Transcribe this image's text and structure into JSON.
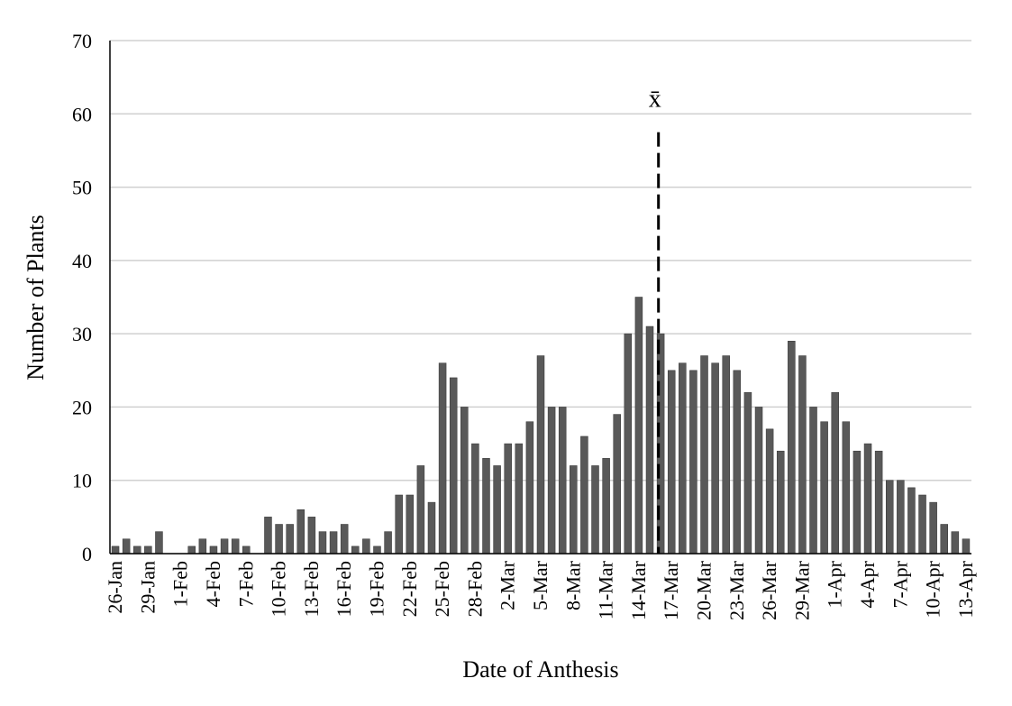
{
  "chart_data": {
    "type": "bar",
    "xlabel": "Date of Anthesis",
    "ylabel": "Number of Plants",
    "categories": [
      "26-Jan",
      null,
      null,
      "29-Jan",
      null,
      null,
      "1-Feb",
      null,
      null,
      "4-Feb",
      null,
      null,
      "7-Feb",
      null,
      null,
      "10-Feb",
      null,
      null,
      "13-Feb",
      null,
      null,
      "16-Feb",
      null,
      null,
      "19-Feb",
      null,
      null,
      "22-Feb",
      null,
      null,
      "25-Feb",
      null,
      null,
      "28-Feb",
      null,
      null,
      "2-Mar",
      null,
      null,
      "5-Mar",
      null,
      null,
      "8-Mar",
      null,
      null,
      "11-Mar",
      null,
      null,
      "14-Mar",
      null,
      null,
      "17-Mar",
      null,
      null,
      "20-Mar",
      null,
      null,
      "23-Mar",
      null,
      null,
      "26-Mar",
      null,
      null,
      "29-Mar",
      null,
      null,
      "1-Apr",
      null,
      null,
      "4-Apr",
      null,
      null,
      "7-Apr",
      null,
      null,
      "10-Apr",
      null,
      null,
      "13-Apr"
    ],
    "values": [
      1,
      2,
      1,
      1,
      3,
      0,
      0,
      1,
      2,
      1,
      2,
      2,
      1,
      0,
      5,
      4,
      4,
      6,
      5,
      3,
      3,
      4,
      1,
      2,
      1,
      3,
      8,
      8,
      12,
      7,
      26,
      24,
      20,
      15,
      13,
      12,
      15,
      15,
      18,
      27,
      20,
      20,
      12,
      16,
      12,
      13,
      19,
      30,
      35,
      31,
      30,
      25,
      26,
      25,
      27,
      26,
      27,
      25,
      22,
      20,
      17,
      14,
      29,
      27,
      20,
      18,
      22,
      18,
      14,
      15,
      14,
      10,
      10,
      9,
      8,
      7,
      4,
      3,
      2
    ],
    "color": "#595959",
    "ylim": [
      0,
      70
    ],
    "yticks": [
      0,
      10,
      20,
      30,
      40,
      50,
      60,
      70
    ],
    "grid": true,
    "annotations": [
      {
        "text": "x̄",
        "x": 49.8,
        "y": 57.5
      }
    ]
  }
}
